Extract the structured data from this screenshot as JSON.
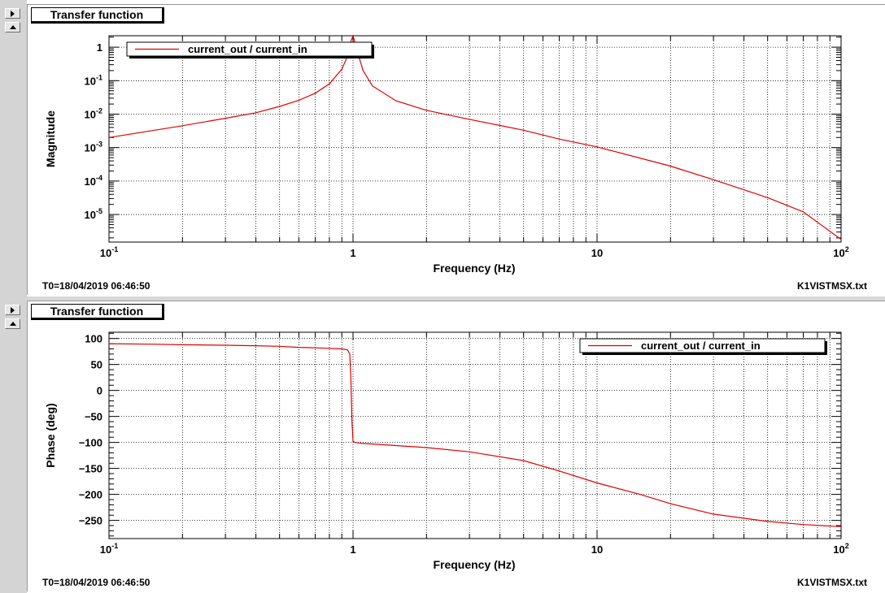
{
  "toolbar": {
    "expand_icon": "play-triangle-icon",
    "collapse_icon": "up-triangle-icon"
  },
  "colors": {
    "series": "#e00000",
    "grid": "#000000",
    "background": "#ffffff"
  },
  "chart_data": [
    {
      "type": "line",
      "title": "Transfer function",
      "xlabel": "Frequency (Hz)",
      "ylabel": "Magnitude",
      "xscale": "log",
      "yscale": "log",
      "xlim": [
        0.1,
        100
      ],
      "ylim": [
        1.5e-06,
        2.2
      ],
      "x_ticks": [
        {
          "value": 0.1,
          "base": "10",
          "exp": "-1"
        },
        {
          "value": 1,
          "base": "1",
          "exp": ""
        },
        {
          "value": 10,
          "base": "10",
          "exp": ""
        },
        {
          "value": 100,
          "base": "10",
          "exp": "2"
        }
      ],
      "y_ticks": [
        {
          "value": 1,
          "base": "1",
          "exp": ""
        },
        {
          "value": 0.1,
          "base": "10",
          "exp": "-1"
        },
        {
          "value": 0.01,
          "base": "10",
          "exp": "-2"
        },
        {
          "value": 0.001,
          "base": "10",
          "exp": "-3"
        },
        {
          "value": 0.0001,
          "base": "10",
          "exp": "-4"
        },
        {
          "value": 1e-05,
          "base": "10",
          "exp": "-5"
        }
      ],
      "grid": true,
      "legend_position": "top-left",
      "series": [
        {
          "name": "current_out / current_in",
          "color": "#e00000",
          "x": [
            0.1,
            0.2,
            0.3,
            0.4,
            0.5,
            0.6,
            0.7,
            0.8,
            0.9,
            0.95,
            0.98,
            1.0,
            1.02,
            1.05,
            1.1,
            1.2,
            1.5,
            2,
            3,
            5,
            7,
            10,
            20,
            30,
            50,
            70,
            100
          ],
          "y": [
            0.002,
            0.0045,
            0.0075,
            0.011,
            0.017,
            0.026,
            0.042,
            0.08,
            0.22,
            0.55,
            1.5,
            2.2,
            1.3,
            0.6,
            0.2,
            0.07,
            0.025,
            0.013,
            0.007,
            0.0033,
            0.0018,
            0.00105,
            0.00028,
            0.00011,
            3.2e-05,
            1.2e-05,
            1.8e-06
          ]
        }
      ],
      "footer_left": "T0=18/04/2019 06:46:50",
      "footer_right": "K1VISTMSX.txt"
    },
    {
      "type": "line",
      "title": "Transfer function",
      "xlabel": "Frequency (Hz)",
      "ylabel": "Phase (deg)",
      "xscale": "log",
      "yscale": "linear",
      "xlim": [
        0.1,
        100
      ],
      "ylim": [
        -285,
        112
      ],
      "x_ticks": [
        {
          "value": 0.1,
          "base": "10",
          "exp": "-1"
        },
        {
          "value": 1,
          "base": "1",
          "exp": ""
        },
        {
          "value": 10,
          "base": "10",
          "exp": ""
        },
        {
          "value": 100,
          "base": "10",
          "exp": "2"
        }
      ],
      "y_ticks": [
        {
          "value": 100,
          "label": "100"
        },
        {
          "value": 50,
          "label": "50"
        },
        {
          "value": 0,
          "label": "0"
        },
        {
          "value": -50,
          "label": "−50"
        },
        {
          "value": -100,
          "label": "−100"
        },
        {
          "value": -150,
          "label": "−150"
        },
        {
          "value": -200,
          "label": "−200"
        },
        {
          "value": -250,
          "label": "−250"
        }
      ],
      "grid": true,
      "legend_position": "top-right",
      "series": [
        {
          "name": "current_out / current_in",
          "color": "#e00000",
          "x": [
            0.1,
            0.15,
            0.2,
            0.3,
            0.4,
            0.5,
            0.6,
            0.7,
            0.8,
            0.9,
            0.95,
            0.97,
            0.98,
            0.99,
            1.0,
            1.02,
            1.05,
            1.1,
            1.5,
            2,
            3,
            5,
            7,
            10,
            15,
            20,
            30,
            50,
            70,
            100
          ],
          "y": [
            90,
            89,
            88,
            87,
            86,
            85,
            83,
            82,
            81,
            80,
            78,
            70,
            20,
            -60,
            -98,
            -100,
            -101,
            -102,
            -106,
            -110,
            -118,
            -135,
            -155,
            -178,
            -200,
            -218,
            -238,
            -252,
            -258,
            -262
          ]
        }
      ],
      "footer_left": "T0=18/04/2019 06:46:50",
      "footer_right": "K1VISTMSX.txt"
    }
  ]
}
